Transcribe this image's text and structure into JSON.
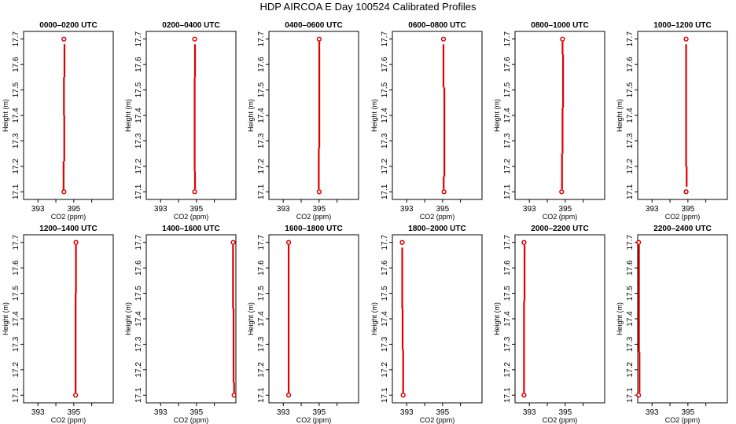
{
  "title": "HDP AIRCOA E  Day 100524  Calibrated Profiles",
  "colors": {
    "profile": "#dd0000",
    "axis": "#000000"
  },
  "chart_data": {
    "type": "line",
    "title": "HDP AIRCOA E  Day 100524  Calibrated Profiles",
    "xlabel": "CO2 (ppm)",
    "ylabel": "Height (m)",
    "xlim": [
      392.2,
      397.2
    ],
    "ylim": [
      17.07,
      17.73
    ],
    "x_ticks": [
      393,
      394,
      395,
      396
    ],
    "x_tick_labels": [
      "393",
      "",
      "395",
      ""
    ],
    "y_ticks": [
      17.1,
      17.2,
      17.3,
      17.4,
      17.5,
      17.6,
      17.7
    ],
    "y_tick_labels": [
      "17.1",
      "17.2",
      "17.3",
      "17.4",
      "17.5",
      "17.6",
      "17.7"
    ],
    "panels": [
      {
        "title": "0000–0200 UTC",
        "points": [
          {
            "x": 394.45,
            "y": 17.1
          },
          {
            "x": 394.45,
            "y": 17.7
          }
        ],
        "segments": [
          {
            "x": 394.43,
            "y0": 17.1,
            "y1": 17.22
          },
          {
            "x": 394.47,
            "y0": 17.22,
            "y1": 17.4
          },
          {
            "x": 394.45,
            "y0": 17.4,
            "y1": 17.55
          },
          {
            "x": 394.48,
            "y0": 17.55,
            "y1": 17.68
          }
        ]
      },
      {
        "title": "0200–0400 UTC",
        "points": [
          {
            "x": 394.9,
            "y": 17.1
          },
          {
            "x": 394.9,
            "y": 17.7
          }
        ],
        "segments": [
          {
            "x": 394.92,
            "y0": 17.11,
            "y1": 17.18
          },
          {
            "x": 394.9,
            "y0": 17.18,
            "y1": 17.55
          },
          {
            "x": 394.92,
            "y0": 17.55,
            "y1": 17.68
          }
        ]
      },
      {
        "title": "0400–0600 UTC",
        "points": [
          {
            "x": 395.0,
            "y": 17.1
          },
          {
            "x": 395.0,
            "y": 17.7
          }
        ],
        "segments": [
          {
            "x": 394.98,
            "y0": 17.11,
            "y1": 17.27
          },
          {
            "x": 395.01,
            "y0": 17.27,
            "y1": 17.69
          }
        ]
      },
      {
        "title": "0600–0800 UTC",
        "points": [
          {
            "x": 395.08,
            "y": 17.1
          },
          {
            "x": 395.05,
            "y": 17.7
          }
        ],
        "segments": [
          {
            "x": 395.06,
            "y0": 17.11,
            "y1": 17.16
          },
          {
            "x": 395.1,
            "y0": 17.16,
            "y1": 17.51
          },
          {
            "x": 395.05,
            "y0": 17.51,
            "y1": 17.68
          }
        ]
      },
      {
        "title": "0800–1000 UTC",
        "points": [
          {
            "x": 394.8,
            "y": 17.1
          },
          {
            "x": 394.85,
            "y": 17.7
          }
        ],
        "segments": [
          {
            "x": 394.82,
            "y0": 17.11,
            "y1": 17.25
          },
          {
            "x": 394.85,
            "y0": 17.25,
            "y1": 17.43
          },
          {
            "x": 394.88,
            "y0": 17.43,
            "y1": 17.64
          },
          {
            "x": 394.85,
            "y0": 17.64,
            "y1": 17.69
          }
        ]
      },
      {
        "title": "1000–1200 UTC",
        "points": [
          {
            "x": 394.9,
            "y": 17.1
          },
          {
            "x": 394.9,
            "y": 17.7
          }
        ],
        "segments": [
          {
            "x": 394.93,
            "y0": 17.12,
            "y1": 17.2
          },
          {
            "x": 394.9,
            "y0": 17.2,
            "y1": 17.68
          }
        ]
      },
      {
        "title": "1200–1400 UTC",
        "points": [
          {
            "x": 395.1,
            "y": 17.1
          },
          {
            "x": 395.12,
            "y": 17.7
          }
        ],
        "segments": [
          {
            "x": 395.1,
            "y0": 17.11,
            "y1": 17.5
          },
          {
            "x": 395.12,
            "y0": 17.5,
            "y1": 17.69
          }
        ]
      },
      {
        "title": "1400–1600 UTC",
        "points": [
          {
            "x": 397.1,
            "y": 17.1
          },
          {
            "x": 397.05,
            "y": 17.7
          }
        ],
        "segments": [
          {
            "x": 397.1,
            "y0": 17.11,
            "y1": 17.15
          },
          {
            "x": 397.07,
            "y0": 17.15,
            "y1": 17.44
          },
          {
            "x": 397.04,
            "y0": 17.44,
            "y1": 17.69
          }
        ]
      },
      {
        "title": "1600–1800 UTC",
        "points": [
          {
            "x": 393.3,
            "y": 17.1
          },
          {
            "x": 393.3,
            "y": 17.7
          }
        ],
        "segments": [
          {
            "x": 393.3,
            "y0": 17.11,
            "y1": 17.69
          }
        ]
      },
      {
        "title": "1800–2000 UTC",
        "points": [
          {
            "x": 392.8,
            "y": 17.1
          },
          {
            "x": 392.75,
            "y": 17.7
          }
        ],
        "segments": [
          {
            "x": 392.8,
            "y0": 17.11,
            "y1": 17.28
          },
          {
            "x": 392.77,
            "y0": 17.28,
            "y1": 17.44
          },
          {
            "x": 392.75,
            "y0": 17.44,
            "y1": 17.68
          }
        ]
      },
      {
        "title": "2000–2200 UTC",
        "points": [
          {
            "x": 392.7,
            "y": 17.1
          },
          {
            "x": 392.7,
            "y": 17.7
          }
        ],
        "segments": [
          {
            "x": 392.7,
            "y0": 17.11,
            "y1": 17.47
          },
          {
            "x": 392.73,
            "y0": 17.47,
            "y1": 17.69
          }
        ]
      },
      {
        "title": "2200–2400 UTC",
        "points": [
          {
            "x": 392.25,
            "y": 17.1
          },
          {
            "x": 392.25,
            "y": 17.7
          }
        ],
        "segments": [
          {
            "x": 392.3,
            "y0": 17.11,
            "y1": 17.27
          },
          {
            "x": 392.27,
            "y0": 17.27,
            "y1": 17.69
          }
        ]
      }
    ]
  }
}
